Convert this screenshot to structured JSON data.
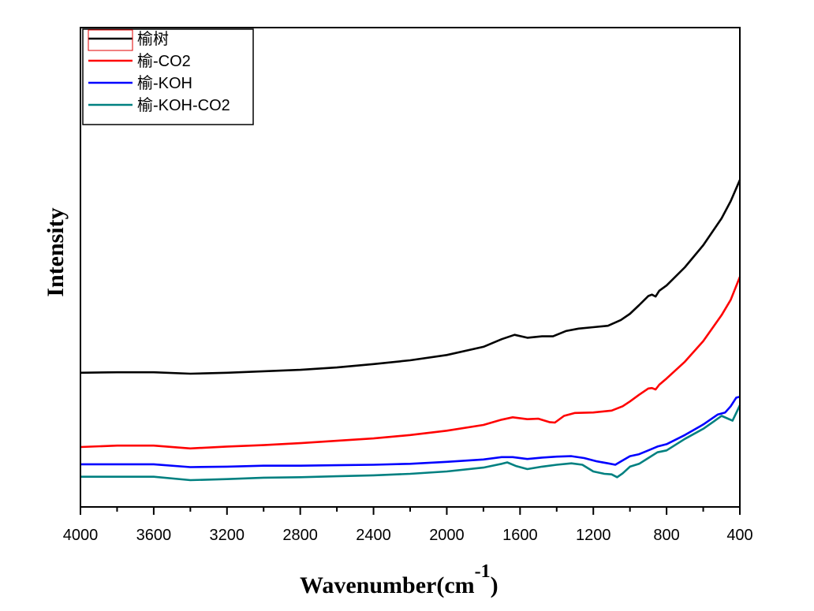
{
  "chart_data": {
    "type": "line",
    "title": "",
    "xlabel": "Wavenumber(cm",
    "xlabel_superscript": "-1",
    "xlabel_suffix": ")",
    "ylabel": "Intensity",
    "xlim": [
      4000,
      400
    ],
    "ylim": [
      0,
      100
    ],
    "x_reversed": true,
    "y_ticks_shown": false,
    "grid": false,
    "legend_position": "top-left",
    "x_ticks": [
      4000,
      3600,
      3200,
      2800,
      2400,
      2000,
      1600,
      1200,
      800,
      400
    ],
    "x_tick_labels": [
      "4000",
      "3600",
      "3200",
      "2800",
      "2400",
      "2000",
      "1600",
      "1200",
      "800",
      "400"
    ],
    "x_minor_ticks": [
      3800,
      3400,
      3000,
      2600,
      2200,
      1800,
      1400,
      1000,
      600
    ],
    "series": [
      {
        "name": "榆树",
        "color": "#000000",
        "points": [
          [
            4000,
            28.0
          ],
          [
            3800,
            28.1
          ],
          [
            3600,
            28.1
          ],
          [
            3400,
            27.8
          ],
          [
            3200,
            28.0
          ],
          [
            3000,
            28.3
          ],
          [
            2800,
            28.6
          ],
          [
            2600,
            29.1
          ],
          [
            2400,
            29.8
          ],
          [
            2200,
            30.6
          ],
          [
            2000,
            31.7
          ],
          [
            1800,
            33.4
          ],
          [
            1700,
            35.0
          ],
          [
            1630,
            35.9
          ],
          [
            1560,
            35.3
          ],
          [
            1480,
            35.6
          ],
          [
            1420,
            35.6
          ],
          [
            1350,
            36.7
          ],
          [
            1280,
            37.2
          ],
          [
            1200,
            37.5
          ],
          [
            1120,
            37.8
          ],
          [
            1050,
            39.0
          ],
          [
            1000,
            40.3
          ],
          [
            950,
            42.1
          ],
          [
            900,
            44.0
          ],
          [
            880,
            44.3
          ],
          [
            860,
            43.9
          ],
          [
            840,
            45.1
          ],
          [
            800,
            46.2
          ],
          [
            700,
            50.0
          ],
          [
            600,
            54.6
          ],
          [
            500,
            60.2
          ],
          [
            450,
            63.8
          ],
          [
            400,
            68.2
          ]
        ]
      },
      {
        "name": "榆-CO2",
        "color": "#ff0000",
        "points": [
          [
            4000,
            12.5
          ],
          [
            3800,
            12.8
          ],
          [
            3600,
            12.8
          ],
          [
            3400,
            12.2
          ],
          [
            3200,
            12.6
          ],
          [
            3000,
            12.9
          ],
          [
            2800,
            13.3
          ],
          [
            2600,
            13.8
          ],
          [
            2400,
            14.3
          ],
          [
            2200,
            15.0
          ],
          [
            2000,
            15.9
          ],
          [
            1800,
            17.1
          ],
          [
            1700,
            18.2
          ],
          [
            1640,
            18.7
          ],
          [
            1560,
            18.3
          ],
          [
            1500,
            18.4
          ],
          [
            1440,
            17.7
          ],
          [
            1410,
            17.6
          ],
          [
            1360,
            19.0
          ],
          [
            1300,
            19.6
          ],
          [
            1200,
            19.7
          ],
          [
            1100,
            20.1
          ],
          [
            1040,
            21.0
          ],
          [
            1000,
            22.0
          ],
          [
            950,
            23.4
          ],
          [
            900,
            24.7
          ],
          [
            880,
            24.8
          ],
          [
            860,
            24.5
          ],
          [
            840,
            25.5
          ],
          [
            800,
            26.8
          ],
          [
            700,
            30.3
          ],
          [
            600,
            34.6
          ],
          [
            500,
            40.0
          ],
          [
            450,
            43.2
          ],
          [
            400,
            48.0
          ]
        ]
      },
      {
        "name": "榆-KOH",
        "color": "#0000ff",
        "points": [
          [
            4000,
            8.9
          ],
          [
            3800,
            8.9
          ],
          [
            3600,
            8.9
          ],
          [
            3400,
            8.3
          ],
          [
            3200,
            8.4
          ],
          [
            3000,
            8.6
          ],
          [
            2800,
            8.6
          ],
          [
            2600,
            8.7
          ],
          [
            2400,
            8.8
          ],
          [
            2200,
            9.0
          ],
          [
            2000,
            9.4
          ],
          [
            1800,
            9.9
          ],
          [
            1700,
            10.4
          ],
          [
            1640,
            10.4
          ],
          [
            1560,
            10.0
          ],
          [
            1480,
            10.3
          ],
          [
            1400,
            10.5
          ],
          [
            1320,
            10.6
          ],
          [
            1250,
            10.2
          ],
          [
            1180,
            9.5
          ],
          [
            1120,
            9.1
          ],
          [
            1080,
            8.8
          ],
          [
            1040,
            9.7
          ],
          [
            1000,
            10.6
          ],
          [
            950,
            11.0
          ],
          [
            900,
            11.8
          ],
          [
            850,
            12.6
          ],
          [
            800,
            13.1
          ],
          [
            700,
            15.0
          ],
          [
            600,
            17.2
          ],
          [
            520,
            19.3
          ],
          [
            480,
            19.7
          ],
          [
            450,
            21.0
          ],
          [
            420,
            22.8
          ],
          [
            400,
            23.0
          ]
        ]
      },
      {
        "name": "榆-KOH-CO2",
        "color": "#008080",
        "points": [
          [
            4000,
            6.3
          ],
          [
            3800,
            6.3
          ],
          [
            3600,
            6.3
          ],
          [
            3400,
            5.6
          ],
          [
            3200,
            5.8
          ],
          [
            3000,
            6.1
          ],
          [
            2800,
            6.2
          ],
          [
            2600,
            6.4
          ],
          [
            2400,
            6.6
          ],
          [
            2200,
            6.9
          ],
          [
            2000,
            7.4
          ],
          [
            1800,
            8.2
          ],
          [
            1700,
            9.0
          ],
          [
            1670,
            9.3
          ],
          [
            1620,
            8.5
          ],
          [
            1560,
            7.9
          ],
          [
            1480,
            8.4
          ],
          [
            1400,
            8.8
          ],
          [
            1320,
            9.1
          ],
          [
            1260,
            8.8
          ],
          [
            1200,
            7.4
          ],
          [
            1140,
            6.9
          ],
          [
            1100,
            6.8
          ],
          [
            1070,
            6.2
          ],
          [
            1040,
            7.0
          ],
          [
            1000,
            8.4
          ],
          [
            950,
            9.0
          ],
          [
            900,
            10.2
          ],
          [
            850,
            11.4
          ],
          [
            800,
            11.8
          ],
          [
            700,
            14.2
          ],
          [
            600,
            16.3
          ],
          [
            540,
            17.9
          ],
          [
            500,
            19.0
          ],
          [
            470,
            18.5
          ],
          [
            440,
            18.0
          ],
          [
            420,
            19.6
          ],
          [
            400,
            21.2
          ]
        ]
      }
    ]
  }
}
